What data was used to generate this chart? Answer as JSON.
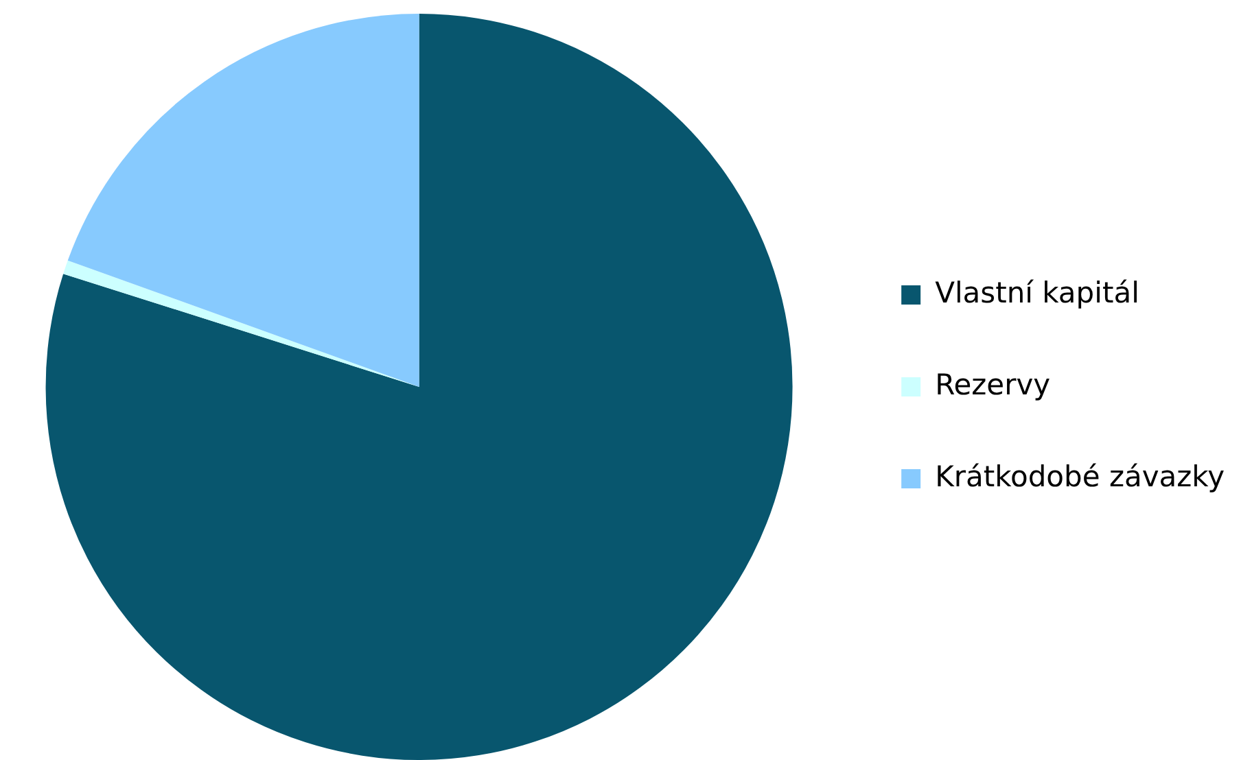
{
  "chart_data": {
    "type": "pie",
    "categories": [
      "Vlastní kapitál",
      "Rezervy",
      "Krátkodobé závazky"
    ],
    "values": [
      79.9,
      0.6,
      19.5
    ],
    "colors": [
      "#08566e",
      "#ccffff",
      "#87cafe"
    ],
    "legend": "right"
  }
}
